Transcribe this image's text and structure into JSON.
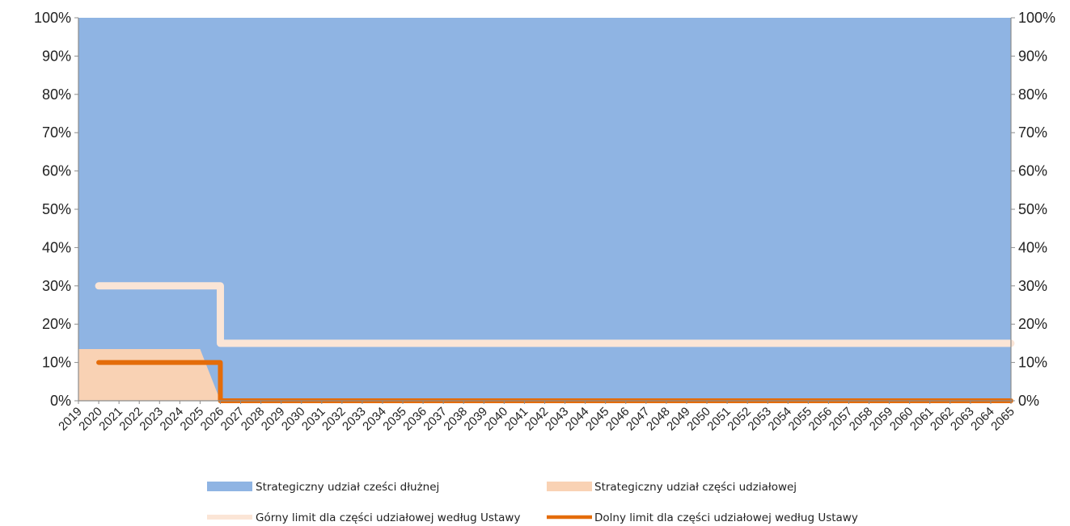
{
  "chart_data": {
    "type": "area",
    "x": [
      2019,
      2020,
      2021,
      2022,
      2023,
      2024,
      2025,
      2026,
      2027,
      2028,
      2029,
      2030,
      2031,
      2032,
      2033,
      2034,
      2035,
      2036,
      2037,
      2038,
      2039,
      2040,
      2041,
      2042,
      2043,
      2044,
      2045,
      2046,
      2047,
      2048,
      2049,
      2050,
      2051,
      2052,
      2053,
      2054,
      2055,
      2056,
      2057,
      2058,
      2059,
      2060,
      2061,
      2062,
      2063,
      2064,
      2065
    ],
    "ylim": [
      0,
      100
    ],
    "yticks": [
      "0%",
      "10%",
      "20%",
      "30%",
      "40%",
      "50%",
      "60%",
      "70%",
      "80%",
      "90%",
      "100%"
    ],
    "series": [
      {
        "name": "Strategiczny udział cześci dłużnej",
        "kind": "area",
        "color": "#8fb4e3",
        "values": [
          100,
          100,
          100,
          100,
          100,
          100,
          100,
          100,
          100,
          100,
          100,
          100,
          100,
          100,
          100,
          100,
          100,
          100,
          100,
          100,
          100,
          100,
          100,
          100,
          100,
          100,
          100,
          100,
          100,
          100,
          100,
          100,
          100,
          100,
          100,
          100,
          100,
          100,
          100,
          100,
          100,
          100,
          100,
          100,
          100,
          100,
          100
        ]
      },
      {
        "name": "Strategiczny udział części udziałowej",
        "kind": "area",
        "color": "#f9d2b4",
        "values": [
          13.5,
          13.5,
          13.5,
          13.5,
          13.5,
          13.5,
          13.5,
          0,
          0,
          0,
          0,
          0,
          0,
          0,
          0,
          0,
          0,
          0,
          0,
          0,
          0,
          0,
          0,
          0,
          0,
          0,
          0,
          0,
          0,
          0,
          0,
          0,
          0,
          0,
          0,
          0,
          0,
          0,
          0,
          0,
          0,
          0,
          0,
          0,
          0,
          0,
          0
        ]
      },
      {
        "name": "Górny limit dla części udziałowej według Ustawy",
        "kind": "line",
        "color": "#fbe5d6",
        "values": [
          null,
          30,
          30,
          30,
          30,
          30,
          30,
          15,
          15,
          15,
          15,
          15,
          15,
          15,
          15,
          15,
          15,
          15,
          15,
          15,
          15,
          15,
          15,
          15,
          15,
          15,
          15,
          15,
          15,
          15,
          15,
          15,
          15,
          15,
          15,
          15,
          15,
          15,
          15,
          15,
          15,
          15,
          15,
          15,
          15,
          15,
          15
        ]
      },
      {
        "name": "Dolny limit dla części udziałowej według Ustawy",
        "kind": "line",
        "color": "#e46c0a",
        "values": [
          null,
          10,
          10,
          10,
          10,
          10,
          10,
          0,
          0,
          0,
          0,
          0,
          0,
          0,
          0,
          0,
          0,
          0,
          0,
          0,
          0,
          0,
          0,
          0,
          0,
          0,
          0,
          0,
          0,
          0,
          0,
          0,
          0,
          0,
          0,
          0,
          0,
          0,
          0,
          0,
          0,
          0,
          0,
          0,
          0,
          0,
          0
        ]
      }
    ],
    "legend_position": "bottom",
    "grid": false,
    "secondary_y_axis": true
  }
}
